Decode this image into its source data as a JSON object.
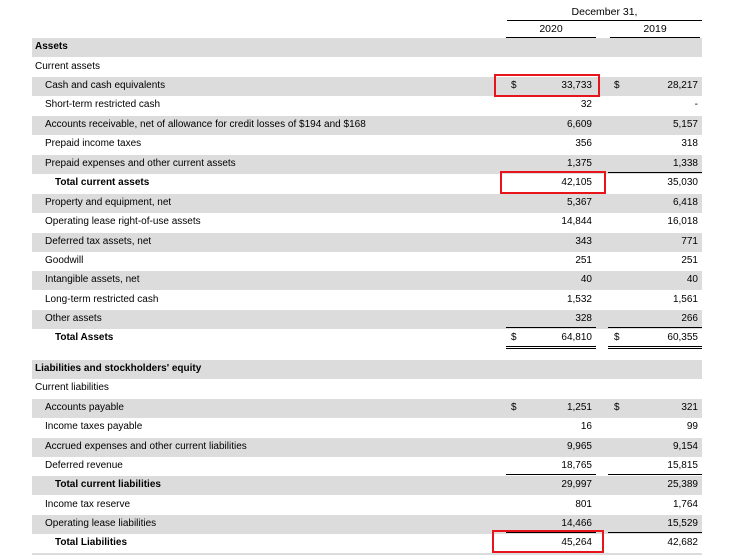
{
  "header": {
    "period": "December 31,",
    "col_2020": "2020",
    "col_2019": "2019"
  },
  "rows": [
    {
      "label": "Assets",
      "bold": true
    },
    {
      "label": "Current assets"
    },
    {
      "label": "Cash and cash equivalents",
      "cur": "$",
      "v2020": "33,733",
      "v2019": "28,217",
      "highlight": true
    },
    {
      "label": "Short-term restricted cash",
      "v2020": "32",
      "v2019": "-"
    },
    {
      "label": "Accounts receivable, net of allowance for credit losses of $194 and $168",
      "v2020": "6,609",
      "v2019": "5,157"
    },
    {
      "label": "Prepaid income taxes",
      "v2020": "356",
      "v2019": "318"
    },
    {
      "label": "Prepaid expenses and other current assets",
      "v2020": "1,375",
      "v2019": "1,338"
    },
    {
      "label": "Total current assets",
      "bold": true,
      "v2020": "42,105",
      "v2019": "35,030",
      "highlight": true
    },
    {
      "label": "Property and equipment, net",
      "v2020": "5,367",
      "v2019": "6,418"
    },
    {
      "label": "Operating lease right-of-use assets",
      "v2020": "14,844",
      "v2019": "16,018"
    },
    {
      "label": "Deferred tax assets, net",
      "v2020": "343",
      "v2019": "771"
    },
    {
      "label": "Goodwill",
      "v2020": "251",
      "v2019": "251"
    },
    {
      "label": "Intangible assets, net",
      "v2020": "40",
      "v2019": "40"
    },
    {
      "label": "Long-term restricted cash",
      "v2020": "1,532",
      "v2019": "1,561"
    },
    {
      "label": "Other assets",
      "v2020": "328",
      "v2019": "266"
    },
    {
      "label": "Total Assets",
      "bold": true,
      "cur": "$",
      "v2020": "64,810",
      "v2019": "60,355"
    },
    {
      "label": "Liabilities and stockholders' equity",
      "bold": true
    },
    {
      "label": "Current liabilities"
    },
    {
      "label": "Accounts payable",
      "cur": "$",
      "v2020": "1,251",
      "v2019": "321"
    },
    {
      "label": "Income taxes payable",
      "v2020": "16",
      "v2019": "99"
    },
    {
      "label": "Accrued expenses and other current liabilities",
      "v2020": "9,965",
      "v2019": "9,154"
    },
    {
      "label": "Deferred revenue",
      "v2020": "18,765",
      "v2019": "15,815"
    },
    {
      "label": "Total current liabilities",
      "bold": true,
      "v2020": "29,997",
      "v2019": "25,389"
    },
    {
      "label": "Income tax reserve",
      "v2020": "801",
      "v2019": "1,764"
    },
    {
      "label": "Operating lease liabilities",
      "v2020": "14,466",
      "v2019": "15,529"
    },
    {
      "label": "Total Liabilities",
      "bold": true,
      "v2020": "45,264",
      "v2019": "42,682",
      "highlight": true
    }
  ]
}
